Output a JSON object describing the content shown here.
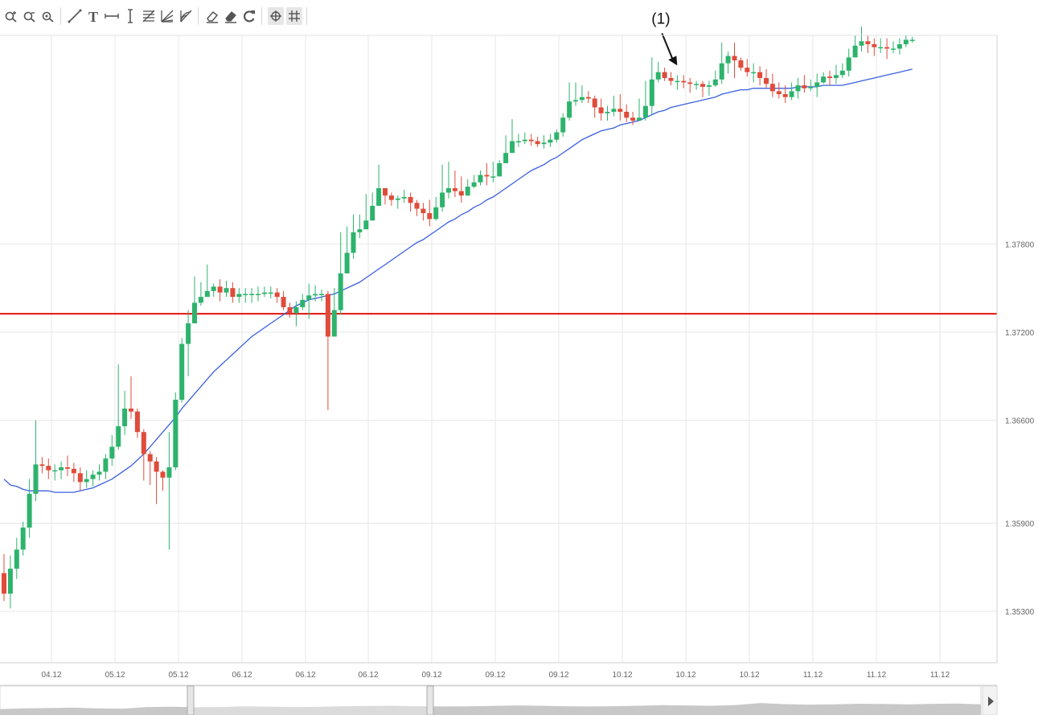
{
  "toolbar": {
    "groups": [
      [
        "zoom-in-icon",
        "zoom-out-icon",
        "zoom-reset-icon"
      ],
      [
        "trend-line-icon",
        "text-tool-icon",
        "horizontal-line-icon",
        "vertical-line-icon",
        "fibonacci-retracement-icon",
        "fibonacci-fan-icon",
        "fibonacci-arc-icon"
      ],
      [
        "eraser-icon",
        "eraser-all-icon",
        "refresh-icon"
      ],
      [
        "crosshair-icon",
        "grid-icon"
      ]
    ],
    "active": [
      "crosshair-icon",
      "grid-icon"
    ]
  },
  "chart_data": {
    "type": "candlestick",
    "title": "",
    "xlabel": "",
    "ylabel": "",
    "grid": true,
    "ylim": [
      1.3495,
      1.3922
    ],
    "yticks": [
      1.353,
      1.359,
      1.366,
      1.372,
      1.378
    ],
    "ytick_labels": [
      "1.35300",
      "1.35900",
      "1.36600",
      "1.37200",
      "1.37800"
    ],
    "xtick_labels": [
      "04.12",
      "05.12",
      "05.12",
      "06.12",
      "06.12",
      "06.12",
      "09.12",
      "09.12",
      "09.12",
      "10.12",
      "10.12",
      "10.12",
      "11.12",
      "11.12",
      "11.12"
    ],
    "colors": {
      "up": "#2db36c",
      "down": "#e04b3a",
      "ma": "#3a5fe0",
      "level": "#e3120b",
      "grid": "#e7e7e7",
      "axis_text": "#666666"
    },
    "horizontal_line": {
      "value": 1.37325,
      "color": "#e3120b"
    },
    "annotation": {
      "text": "(1)",
      "candle_index": 107
    },
    "candles": [
      [
        1.3556,
        1.3542,
        1.3569,
        1.3537
      ],
      [
        1.3542,
        1.3559,
        1.3568,
        1.3532
      ],
      [
        1.3559,
        1.3572,
        1.358,
        1.3552
      ],
      [
        1.3572,
        1.3587,
        1.3591,
        1.3568
      ],
      [
        1.3587,
        1.361,
        1.362,
        1.358
      ],
      [
        1.361,
        1.363,
        1.366,
        1.3605
      ],
      [
        1.363,
        1.3629,
        1.3635,
        1.3624
      ],
      [
        1.3629,
        1.3626,
        1.3634,
        1.362
      ],
      [
        1.3626,
        1.3626,
        1.363,
        1.3619
      ],
      [
        1.3626,
        1.3628,
        1.3632,
        1.362
      ],
      [
        1.3628,
        1.3627,
        1.3636,
        1.3622
      ],
      [
        1.3627,
        1.3624,
        1.3631,
        1.3618
      ],
      [
        1.3624,
        1.3618,
        1.3628,
        1.3612
      ],
      [
        1.3618,
        1.362,
        1.3626,
        1.3614
      ],
      [
        1.362,
        1.3623,
        1.3626,
        1.3615
      ],
      [
        1.3623,
        1.3625,
        1.363,
        1.3619
      ],
      [
        1.3625,
        1.3634,
        1.3637,
        1.362
      ],
      [
        1.3634,
        1.3642,
        1.365,
        1.3629
      ],
      [
        1.3642,
        1.3656,
        1.3698,
        1.364
      ],
      [
        1.3656,
        1.3668,
        1.368,
        1.365
      ],
      [
        1.3668,
        1.3666,
        1.369,
        1.3661
      ],
      [
        1.3666,
        1.3652,
        1.3668,
        1.3648
      ],
      [
        1.3652,
        1.3637,
        1.3654,
        1.3619
      ],
      [
        1.3637,
        1.3632,
        1.3639,
        1.3616
      ],
      [
        1.3632,
        1.3625,
        1.3635,
        1.3603
      ],
      [
        1.3625,
        1.3621,
        1.3626,
        1.3612
      ],
      [
        1.3621,
        1.3628,
        1.3652,
        1.3572
      ],
      [
        1.3628,
        1.3674,
        1.3679,
        1.3626
      ],
      [
        1.3674,
        1.3712,
        1.3716,
        1.3672
      ],
      [
        1.3712,
        1.3726,
        1.3735,
        1.369
      ],
      [
        1.3726,
        1.374,
        1.3758,
        1.3734
      ],
      [
        1.374,
        1.3744,
        1.3754,
        1.3738
      ],
      [
        1.3744,
        1.3748,
        1.3766,
        1.3746
      ],
      [
        1.3748,
        1.3751,
        1.3753,
        1.3744
      ],
      [
        1.3751,
        1.3747,
        1.3756,
        1.3741
      ],
      [
        1.3747,
        1.375,
        1.3755,
        1.3744
      ],
      [
        1.375,
        1.3744,
        1.3754,
        1.374
      ],
      [
        1.3744,
        1.3746,
        1.375,
        1.374
      ],
      [
        1.3746,
        1.3746,
        1.375,
        1.374
      ],
      [
        1.3746,
        1.3746,
        1.375,
        1.374
      ],
      [
        1.3746,
        1.3746,
        1.3751,
        1.3741
      ],
      [
        1.3746,
        1.3747,
        1.3751,
        1.3744
      ],
      [
        1.3747,
        1.3747,
        1.3751,
        1.3743
      ],
      [
        1.3747,
        1.3744,
        1.375,
        1.374
      ],
      [
        1.3744,
        1.3737,
        1.3748,
        1.3735
      ],
      [
        1.3737,
        1.3733,
        1.374,
        1.373
      ],
      [
        1.3733,
        1.3737,
        1.3741,
        1.3724
      ],
      [
        1.3737,
        1.3742,
        1.3746,
        1.3735
      ],
      [
        1.3742,
        1.3745,
        1.3753,
        1.3729
      ],
      [
        1.3745,
        1.3746,
        1.3752,
        1.3741
      ],
      [
        1.3746,
        1.3746,
        1.3749,
        1.3741
      ],
      [
        1.3746,
        1.3717,
        1.3748,
        1.3667
      ],
      [
        1.3717,
        1.3735,
        1.375,
        1.3731
      ],
      [
        1.3735,
        1.376,
        1.3788,
        1.3732
      ],
      [
        1.376,
        1.3774,
        1.3792,
        1.3772
      ],
      [
        1.3774,
        1.3788,
        1.38,
        1.377
      ],
      [
        1.3788,
        1.379,
        1.38,
        1.3784
      ],
      [
        1.379,
        1.3796,
        1.3814,
        1.3794
      ],
      [
        1.3796,
        1.3806,
        1.3815,
        1.38
      ],
      [
        1.3806,
        1.3818,
        1.3834,
        1.3816
      ],
      [
        1.3818,
        1.3813,
        1.3818,
        1.3807
      ],
      [
        1.3813,
        1.381,
        1.3815,
        1.3806
      ],
      [
        1.381,
        1.3811,
        1.3813,
        1.3804
      ],
      [
        1.3811,
        1.3812,
        1.3817,
        1.3808
      ],
      [
        1.3812,
        1.3808,
        1.3815,
        1.3802
      ],
      [
        1.3808,
        1.3804,
        1.381,
        1.3799
      ],
      [
        1.3804,
        1.3801,
        1.3808,
        1.3796
      ],
      [
        1.3801,
        1.3797,
        1.381,
        1.3792
      ],
      [
        1.3797,
        1.3805,
        1.3812,
        1.3796
      ],
      [
        1.3805,
        1.3815,
        1.3834,
        1.3802
      ],
      [
        1.3815,
        1.3818,
        1.3836,
        1.3811
      ],
      [
        1.3818,
        1.3816,
        1.383,
        1.3812
      ],
      [
        1.3816,
        1.3813,
        1.3826,
        1.3808
      ],
      [
        1.3813,
        1.3819,
        1.3824,
        1.3813
      ],
      [
        1.3819,
        1.3822,
        1.3827,
        1.3818
      ],
      [
        1.3822,
        1.3827,
        1.383,
        1.382
      ],
      [
        1.3827,
        1.3826,
        1.3835,
        1.382
      ],
      [
        1.3826,
        1.3826,
        1.3836,
        1.3822
      ],
      [
        1.3826,
        1.3835,
        1.3837,
        1.3831
      ],
      [
        1.3835,
        1.3842,
        1.3854,
        1.3839
      ],
      [
        1.3842,
        1.385,
        1.3865,
        1.3846
      ],
      [
        1.385,
        1.385,
        1.3855,
        1.3846
      ],
      [
        1.385,
        1.3851,
        1.3856,
        1.3848
      ],
      [
        1.3851,
        1.385,
        1.3855,
        1.3847
      ],
      [
        1.385,
        1.3848,
        1.3853,
        1.3846
      ],
      [
        1.3848,
        1.3849,
        1.3854,
        1.3845
      ],
      [
        1.3849,
        1.3851,
        1.3855,
        1.3846
      ],
      [
        1.3851,
        1.3856,
        1.3858,
        1.3849
      ],
      [
        1.3856,
        1.3866,
        1.3869,
        1.3853
      ],
      [
        1.3866,
        1.3877,
        1.389,
        1.3864
      ],
      [
        1.3877,
        1.3878,
        1.389,
        1.3874
      ],
      [
        1.3878,
        1.388,
        1.3888,
        1.3876
      ],
      [
        1.388,
        1.3879,
        1.3884,
        1.3876
      ],
      [
        1.3879,
        1.3873,
        1.3881,
        1.3866
      ],
      [
        1.3873,
        1.3869,
        1.3879,
        1.3864
      ],
      [
        1.3869,
        1.387,
        1.3874,
        1.3864
      ],
      [
        1.387,
        1.3872,
        1.3881,
        1.3867
      ],
      [
        1.3872,
        1.387,
        1.3882,
        1.3864
      ],
      [
        1.387,
        1.3866,
        1.3875,
        1.3863
      ],
      [
        1.3866,
        1.3864,
        1.387,
        1.3861
      ],
      [
        1.3864,
        1.3866,
        1.3879,
        1.3864
      ],
      [
        1.3866,
        1.3874,
        1.3891,
        1.3864
      ],
      [
        1.3874,
        1.3892,
        1.3907,
        1.3868
      ],
      [
        1.3892,
        1.3897,
        1.3904,
        1.389
      ],
      [
        1.3897,
        1.3893,
        1.39,
        1.3891
      ],
      [
        1.3893,
        1.3891,
        1.3897,
        1.3888
      ],
      [
        1.3891,
        1.3891,
        1.3895,
        1.3885
      ],
      [
        1.3891,
        1.389,
        1.3895,
        1.3886
      ],
      [
        1.389,
        1.3889,
        1.3893,
        1.3883
      ],
      [
        1.3889,
        1.3889,
        1.3891,
        1.3885
      ],
      [
        1.3889,
        1.3887,
        1.3891,
        1.388
      ],
      [
        1.3887,
        1.3888,
        1.3891,
        1.3881
      ],
      [
        1.3888,
        1.3892,
        1.3898,
        1.3887
      ],
      [
        1.3892,
        1.3903,
        1.3917,
        1.3889
      ],
      [
        1.3903,
        1.3908,
        1.3911,
        1.3896
      ],
      [
        1.3908,
        1.3905,
        1.3917,
        1.3893
      ],
      [
        1.3905,
        1.39,
        1.3907,
        1.3898
      ],
      [
        1.39,
        1.3897,
        1.3906,
        1.3894
      ],
      [
        1.3897,
        1.3897,
        1.3903,
        1.389
      ],
      [
        1.3897,
        1.3893,
        1.3901,
        1.3888
      ],
      [
        1.3893,
        1.3889,
        1.3899,
        1.3886
      ],
      [
        1.3889,
        1.3884,
        1.3896,
        1.388
      ],
      [
        1.3884,
        1.3882,
        1.389,
        1.3879
      ],
      [
        1.3882,
        1.388,
        1.3888,
        1.3876
      ],
      [
        1.388,
        1.3884,
        1.389,
        1.3878
      ],
      [
        1.3884,
        1.3888,
        1.3893,
        1.3879
      ],
      [
        1.3888,
        1.3886,
        1.3895,
        1.3883
      ],
      [
        1.3886,
        1.3887,
        1.3892,
        1.3884
      ],
      [
        1.3887,
        1.389,
        1.3896,
        1.388
      ],
      [
        1.389,
        1.3894,
        1.3897,
        1.3889
      ],
      [
        1.3894,
        1.3893,
        1.3898,
        1.3888
      ],
      [
        1.3893,
        1.3895,
        1.3902,
        1.3889
      ],
      [
        1.3895,
        1.3898,
        1.3903,
        1.3893
      ],
      [
        1.3898,
        1.3907,
        1.3913,
        1.3894
      ],
      [
        1.3907,
        1.3915,
        1.3922,
        1.3908
      ],
      [
        1.3915,
        1.3918,
        1.3928,
        1.3911
      ],
      [
        1.3918,
        1.3916,
        1.3922,
        1.391
      ],
      [
        1.3916,
        1.3914,
        1.392,
        1.3908
      ],
      [
        1.3914,
        1.3914,
        1.392,
        1.391
      ],
      [
        1.3914,
        1.3913,
        1.392,
        1.3906
      ],
      [
        1.3913,
        1.3913,
        1.3918,
        1.391
      ],
      [
        1.3913,
        1.3916,
        1.392,
        1.3909
      ],
      [
        1.3916,
        1.3919,
        1.3922,
        1.3914
      ],
      [
        1.3919,
        1.3919,
        1.3921,
        1.3917
      ]
    ],
    "ma": [
      1.362,
      1.3616,
      1.3615,
      1.3613,
      1.3612,
      1.3612,
      1.3612,
      1.3612,
      1.3611,
      1.3611,
      1.3611,
      1.3611,
      1.3612,
      1.3613,
      1.3614,
      1.3616,
      1.3618,
      1.362,
      1.3623,
      1.3626,
      1.3629,
      1.3633,
      1.3637,
      1.3642,
      1.3647,
      1.3652,
      1.3657,
      1.3662,
      1.3668,
      1.3673,
      1.3678,
      1.3683,
      1.3688,
      1.3693,
      1.3697,
      1.3701,
      1.3705,
      1.3709,
      1.3713,
      1.3717,
      1.372,
      1.3723,
      1.3726,
      1.3729,
      1.3732,
      1.3735,
      1.3738,
      1.374,
      1.3742,
      1.3743,
      1.3744,
      1.3745,
      1.3746,
      1.3748,
      1.375,
      1.3752,
      1.3754,
      1.3757,
      1.376,
      1.3763,
      1.3766,
      1.3769,
      1.3772,
      1.3775,
      1.3778,
      1.3781,
      1.3783,
      1.3786,
      1.3789,
      1.3792,
      1.3795,
      1.3797,
      1.38,
      1.3802,
      1.3805,
      1.3807,
      1.381,
      1.3812,
      1.3815,
      1.3818,
      1.3821,
      1.3824,
      1.3827,
      1.383,
      1.3832,
      1.3834,
      1.3837,
      1.3839,
      1.3842,
      1.3845,
      1.3848,
      1.3851,
      1.3853,
      1.3855,
      1.3857,
      1.3858,
      1.3859,
      1.3861,
      1.3862,
      1.3863,
      1.3864,
      1.3866,
      1.3868,
      1.387,
      1.3871,
      1.3873,
      1.3874,
      1.3875,
      1.3876,
      1.3877,
      1.3878,
      1.3879,
      1.388,
      1.3882,
      1.3883,
      1.3884,
      1.3885,
      1.3885,
      1.3886,
      1.3886,
      1.3886,
      1.3886,
      1.3886,
      1.3886,
      1.3886,
      1.3887,
      1.3887,
      1.3887,
      1.3887,
      1.3888,
      1.3888,
      1.3888,
      1.3888,
      1.3889,
      1.389,
      1.3891,
      1.3892,
      1.3893,
      1.3894,
      1.3895,
      1.3896,
      1.3897,
      1.3898,
      1.3899
    ],
    "navigator": {
      "profile": [
        0.45,
        0.5,
        0.52,
        0.55,
        0.5,
        0.48,
        0.6,
        0.62,
        0.58,
        0.6,
        0.65,
        0.63,
        0.6,
        0.62,
        0.66,
        0.68,
        0.7,
        0.66,
        0.64,
        0.65,
        0.68,
        0.72,
        0.7,
        0.66,
        0.64,
        0.66,
        0.7,
        0.74,
        0.72,
        0.7,
        0.75,
        0.9,
        0.82,
        0.78,
        0.8,
        0.85,
        0.83,
        0.8,
        0.84,
        0.86,
        0.8
      ]
    }
  }
}
